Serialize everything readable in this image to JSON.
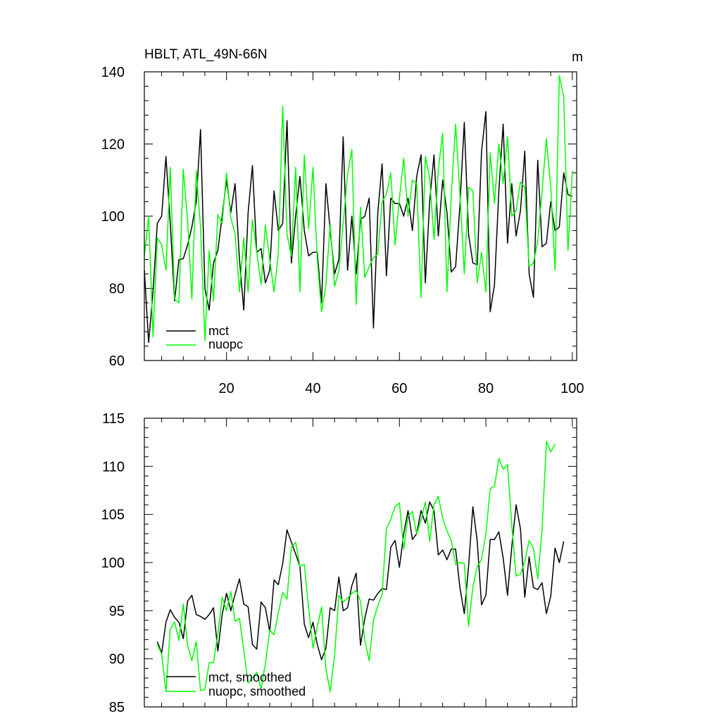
{
  "chart_data": [
    {
      "type": "line",
      "title": "HBLT, ATL_49N-66N",
      "units": "m",
      "xlim": [
        1,
        101
      ],
      "ylim": [
        60,
        140
      ],
      "xticks": [
        20,
        40,
        60,
        80,
        100
      ],
      "yticks": [
        60,
        80,
        100,
        120,
        140
      ],
      "grid": false,
      "legend_placement": "bottom-left",
      "x_start": 1,
      "series": [
        {
          "name": "mct",
          "color": "#000000",
          "values": [
            85,
            65,
            79,
            98,
            100,
            116.5,
            98,
            76.5,
            88,
            88.2,
            92,
            97,
            104,
            124,
            80,
            74,
            87,
            90.5,
            100,
            110,
            101,
            109,
            88,
            74,
            101,
            114,
            90,
            91,
            81.5,
            85,
            107,
            96,
            98,
            126.5,
            87,
            100,
            111,
            96,
            89,
            90,
            90,
            76,
            109,
            96,
            84,
            88,
            122,
            85,
            100,
            84,
            99,
            100,
            105,
            69,
            101,
            114.5,
            83.5,
            105,
            103.5,
            103.5,
            100,
            105,
            96,
            111,
            117,
            81.5,
            104,
            117,
            94.5,
            110,
            101,
            84.5,
            86,
            103,
            126,
            95,
            87,
            86.5,
            118,
            129,
            73.5,
            81,
            107,
            125.5,
            92.5,
            109,
            94.5,
            101.5,
            118,
            84,
            77.5,
            115.5,
            91.5,
            92.5,
            104,
            96,
            97,
            112,
            106,
            105.5
          ]
        },
        {
          "name": "nuopc",
          "color": "#00ff00",
          "values": [
            89,
            100,
            66.5,
            94,
            92,
            85,
            113.5,
            77,
            76,
            113,
            99,
            77,
            112.5,
            97,
            65.5,
            90.5,
            76.5,
            100.5,
            98,
            112,
            99.5,
            95,
            79,
            94,
            79,
            99,
            90,
            81,
            97.5,
            88,
            79,
            89.5,
            130.5,
            95,
            89,
            113.5,
            79,
            117,
            96.5,
            113.5,
            88,
            73.5,
            81,
            98,
            80.5,
            85,
            98,
            111.5,
            118.5,
            75.5,
            102.5,
            83,
            86,
            88.5,
            89.5,
            104,
            106,
            112,
            92,
            105,
            116,
            100,
            110,
            109,
            77.5,
            116.5,
            110.5,
            93.5,
            113,
            123,
            79,
            106,
            125.5,
            106,
            84,
            108,
            107,
            81.5,
            90,
            79,
            117.5,
            103.5,
            120,
            109,
            122,
            100,
            101.5,
            109.5,
            108,
            86,
            87,
            93,
            107,
            121.5,
            108,
            85,
            139,
            133,
            90.5,
            112.5
          ]
        }
      ]
    },
    {
      "type": "line",
      "xlim": [
        1,
        101
      ],
      "ylim": [
        85,
        115
      ],
      "xticks": [
        20,
        40,
        60,
        80,
        100
      ],
      "yticks": [
        85,
        90,
        95,
        100,
        105,
        110,
        115
      ],
      "grid": false,
      "legend_placement": "bottom-left",
      "x_start": 4,
      "series": [
        {
          "name": "mct, smoothed",
          "color": "#000000",
          "values": [
            91.8,
            90.6,
            93.8,
            95.1,
            94.3,
            93.8,
            92.1,
            96,
            96.6,
            94.6,
            94.4,
            94.1,
            94.6,
            95.3,
            90.8,
            94.6,
            96.8,
            95,
            96.7,
            98.3,
            95.7,
            95.4,
            91.5,
            91,
            95.9,
            95.3,
            92.8,
            98.2,
            97.7,
            99.9,
            103.4,
            102.1,
            100.9,
            99.6,
            93.6,
            92.2,
            93.8,
            91.5,
            89.9,
            91.1,
            95.3,
            95,
            98.5,
            95,
            95.3,
            97.6,
            98.9,
            91.4,
            94.2,
            96.2,
            96.1,
            96.8,
            97.3,
            97.2,
            101.6,
            102.3,
            99.5,
            103,
            105.4,
            102.4,
            103,
            105.4,
            104.1,
            106.3,
            105.4,
            100.8,
            101.3,
            100.3,
            101.4,
            101.4,
            97.4,
            94.7,
            99.6,
            105.8,
            102.2,
            95.6,
            96.6,
            102.4,
            102.4,
            103.2,
            100.5,
            96.6,
            101.7,
            106,
            103.5,
            96.4,
            100.6,
            97.4,
            97.2,
            97.9,
            94.7,
            96.5,
            101.5,
            100,
            102.2
          ]
        },
        {
          "name": "nuopc, smoothed",
          "color": "#00ff00",
          "values": [
            91.5,
            90.5,
            86.6,
            93.1,
            93.8,
            91.9,
            95.7,
            91.4,
            89.8,
            91.8,
            86.7,
            86.8,
            89.6,
            89.6,
            92.6,
            96.4,
            95,
            97,
            93.9,
            94.2,
            90.9,
            87.5,
            88,
            88.6,
            86.9,
            89.5,
            93,
            92.5,
            94.8,
            96.9,
            96.2,
            101.6,
            102.1,
            99.6,
            99.8,
            95.3,
            91.1,
            93.3,
            95.4,
            88.9,
            86.6,
            90.4,
            96.6,
            95.9,
            96.3,
            96.8,
            97.1,
            96,
            91.9,
            89.8,
            94,
            95.5,
            96.7,
            103.5,
            104.5,
            105.8,
            106.2,
            101.4,
            104.8,
            105.3,
            103,
            104.4,
            106.3,
            102.2,
            106,
            106.9,
            104.6,
            103.3,
            102.3,
            99.8,
            100,
            99.9,
            93.4,
            97.5,
            99.6,
            100.3,
            103,
            107.7,
            107.9,
            110.8,
            109.7,
            110.2,
            103.8,
            98.6,
            98.8,
            100.1,
            102.3,
            101.5,
            98.3,
            103.4,
            112.6,
            111.5,
            112.3
          ]
        }
      ]
    }
  ]
}
